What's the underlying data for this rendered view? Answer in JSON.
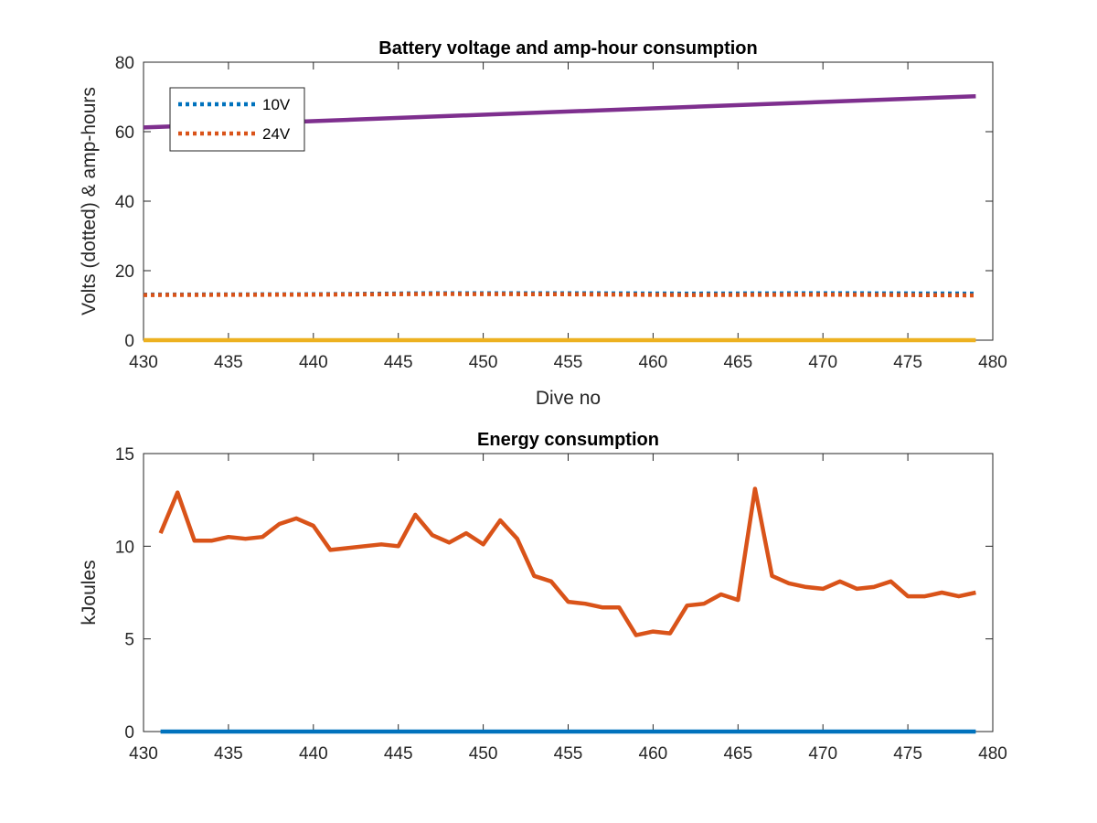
{
  "chart_data": [
    {
      "type": "line",
      "title": "Battery voltage and amp-hour consumption",
      "xlabel": "Dive no",
      "ylabel": "Volts (dotted) & amp-hours",
      "xlim": [
        430,
        480
      ],
      "ylim": [
        0,
        80
      ],
      "xticks": [
        430,
        435,
        440,
        445,
        450,
        455,
        460,
        465,
        470,
        475,
        480
      ],
      "yticks": [
        0,
        20,
        40,
        60,
        80
      ],
      "grid": false,
      "legend": {
        "placement": "top-left",
        "entries": [
          "10V",
          "24V"
        ]
      },
      "series": [
        {
          "name": "10V",
          "style": "dotted",
          "color": "#0072BD",
          "x": [
            430,
            440,
            447,
            455,
            462,
            470,
            479
          ],
          "y": [
            13.1,
            13.2,
            13.5,
            13.5,
            13.4,
            13.5,
            13.4
          ]
        },
        {
          "name": "24V",
          "style": "dotted",
          "color": "#D95319",
          "x": [
            430,
            440,
            447,
            455,
            462,
            470,
            479
          ],
          "y": [
            13.0,
            13.1,
            13.3,
            13.2,
            13.0,
            13.1,
            12.9
          ]
        },
        {
          "style": "solid",
          "color": "#7E2F8E",
          "x": [
            430,
            479
          ],
          "y": [
            61.2,
            70.2
          ]
        },
        {
          "style": "solid",
          "color": "#EDB120",
          "x": [
            430,
            479
          ],
          "y": [
            0,
            0
          ]
        }
      ]
    },
    {
      "type": "line",
      "title": "Energy consumption",
      "xlabel": "",
      "ylabel": "kJoules",
      "xlim": [
        430,
        480
      ],
      "ylim": [
        0,
        15
      ],
      "xticks": [
        430,
        435,
        440,
        445,
        450,
        455,
        460,
        465,
        470,
        475,
        480
      ],
      "yticks": [
        0,
        5,
        10,
        15
      ],
      "grid": false,
      "series": [
        {
          "style": "solid",
          "color": "#0072BD",
          "x": [
            431,
            479
          ],
          "y": [
            0,
            0
          ]
        },
        {
          "style": "solid",
          "color": "#D95319",
          "x": [
            431,
            432,
            433,
            434,
            435,
            436,
            437,
            438,
            439,
            440,
            441,
            442,
            443,
            444,
            445,
            446,
            447,
            448,
            449,
            450,
            451,
            452,
            453,
            454,
            455,
            456,
            457,
            458,
            459,
            460,
            461,
            462,
            463,
            464,
            465,
            466,
            467,
            468,
            469,
            470,
            471,
            472,
            473,
            474,
            475,
            476,
            477,
            478,
            479
          ],
          "y": [
            10.7,
            12.9,
            10.3,
            10.3,
            10.5,
            10.4,
            10.5,
            11.2,
            11.5,
            11.1,
            9.8,
            9.9,
            10.0,
            10.1,
            10.0,
            11.7,
            10.6,
            10.2,
            10.7,
            10.1,
            11.4,
            10.4,
            8.4,
            8.1,
            7.0,
            6.9,
            6.7,
            6.7,
            5.2,
            5.4,
            5.3,
            6.8,
            6.9,
            7.4,
            7.1,
            13.1,
            8.4,
            8.0,
            7.8,
            7.7,
            8.1,
            7.7,
            7.8,
            8.1,
            7.3,
            7.3,
            7.5,
            7.3,
            7.5
          ]
        }
      ]
    }
  ]
}
